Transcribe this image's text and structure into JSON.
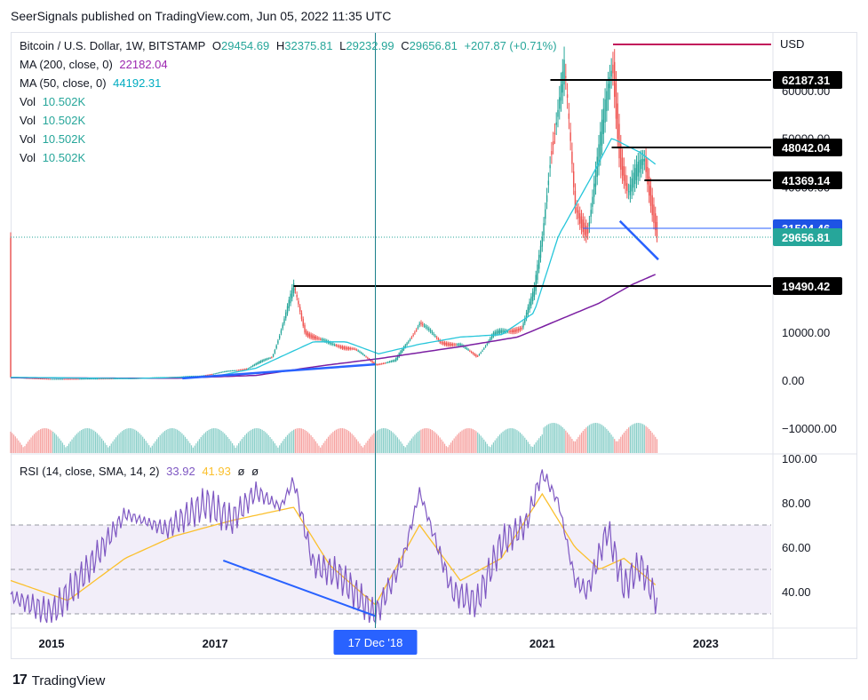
{
  "header": {
    "caption": "SeerSignals published on TradingView.com, Jun 05, 2022 11:35 UTC"
  },
  "legend": {
    "symbol": "Bitcoin / U.S. Dollar, 1W, BITSTAMP",
    "open_label": "O",
    "open": "29454.69",
    "high_label": "H",
    "high": "32375.81",
    "low_label": "L",
    "low": "29232.99",
    "close_label": "C",
    "close": "29656.81",
    "change": "+207.87 (+0.71%)",
    "ma200_label": "MA (200, close, 0)",
    "ma200_value": "22182.04",
    "ma50_label": "MA (50, close, 0)",
    "ma50_value": "44192.31",
    "vol_rows": [
      {
        "label": "Vol",
        "value": "10.502K"
      },
      {
        "label": "Vol",
        "value": "10.502K"
      },
      {
        "label": "Vol",
        "value": "10.502K"
      },
      {
        "label": "Vol",
        "value": "10.502K"
      }
    ],
    "rsi_label": "RSI (14, close, SMA, 14, 2)",
    "rsi_value": "33.92",
    "rsi_sma_value": "41.93",
    "rsi_extra1": "ø",
    "rsi_extra2": "ø"
  },
  "footer": {
    "brand": "TradingView",
    "logo": "17"
  },
  "colors": {
    "up": "#26a69a",
    "down": "#ef5350",
    "ma200": "#7b1fa2",
    "ma50": "#26c6da",
    "trend": "#2962ff",
    "rsi": "#7e57c2",
    "rsi_sma": "#fbc02d",
    "crosshair": "#1a7f8a",
    "level_black": "#000000",
    "level_blue": "#2962ff",
    "last_price": "#26a69a",
    "usd_line": "#c2185b"
  },
  "chart_data": [
    {
      "type": "candlestick",
      "title": "Bitcoin / U.S. Dollar, 1W, BITSTAMP",
      "currency": "USD",
      "x_tick_labels": [
        "2015",
        "2017",
        "2021",
        "2023"
      ],
      "crosshair_label": "17 Dec '18",
      "ylim": [
        -12000,
        69000
      ],
      "y_tick_labels": [
        {
          "value": 60000,
          "label": "60000.00"
        },
        {
          "value": 50000,
          "label": "50000.00"
        },
        {
          "value": 40000,
          "label": "40000.00"
        },
        {
          "value": 10000,
          "label": "10000.00"
        },
        {
          "value": 0,
          "label": "0.00"
        },
        {
          "value": -10000,
          "label": "−10000.00"
        }
      ],
      "horizontal_levels": [
        {
          "value": 62187.31,
          "label": "62187.31",
          "style": "black"
        },
        {
          "value": 48042.04,
          "label": "48042.04",
          "style": "black"
        },
        {
          "value": 41369.14,
          "label": "41369.14",
          "style": "black"
        },
        {
          "value": 31504.46,
          "label": "31504.46",
          "style": "blue"
        },
        {
          "value": 29656.81,
          "label": "29656.81",
          "style": "last"
        },
        {
          "value": 19490.42,
          "label": "19490.42",
          "style": "black"
        }
      ],
      "ohlc_last": {
        "open": 29454.69,
        "high": 32375.81,
        "low": 29232.99,
        "close": 29656.81
      },
      "ma200_last": 22182.04,
      "ma50_last": 44192.31,
      "price_path": [
        {
          "year": 2014.5,
          "price": 600
        },
        {
          "year": 2015.0,
          "price": 250
        },
        {
          "year": 2016.0,
          "price": 400
        },
        {
          "year": 2016.8,
          "price": 900
        },
        {
          "year": 2017.4,
          "price": 2500
        },
        {
          "year": 2017.7,
          "price": 5000
        },
        {
          "year": 2017.96,
          "price": 19000
        },
        {
          "year": 2018.1,
          "price": 10000
        },
        {
          "year": 2018.4,
          "price": 7500
        },
        {
          "year": 2018.7,
          "price": 6500
        },
        {
          "year": 2018.96,
          "price": 3300
        },
        {
          "year": 2019.2,
          "price": 4000
        },
        {
          "year": 2019.5,
          "price": 12000
        },
        {
          "year": 2019.75,
          "price": 8000
        },
        {
          "year": 2020.0,
          "price": 7200
        },
        {
          "year": 2020.2,
          "price": 5000
        },
        {
          "year": 2020.4,
          "price": 9500
        },
        {
          "year": 2020.75,
          "price": 11000
        },
        {
          "year": 2020.9,
          "price": 18000
        },
        {
          "year": 2021.0,
          "price": 30000
        },
        {
          "year": 2021.1,
          "price": 48000
        },
        {
          "year": 2021.27,
          "price": 63000
        },
        {
          "year": 2021.4,
          "price": 36000
        },
        {
          "year": 2021.55,
          "price": 31000
        },
        {
          "year": 2021.7,
          "price": 47000
        },
        {
          "year": 2021.86,
          "price": 67000
        },
        {
          "year": 2021.95,
          "price": 47000
        },
        {
          "year": 2022.05,
          "price": 38000
        },
        {
          "year": 2022.25,
          "price": 46000
        },
        {
          "year": 2022.35,
          "price": 36000
        },
        {
          "year": 2022.42,
          "price": 29500
        }
      ],
      "ma50_path": [
        {
          "year": 2014.5,
          "price": 600
        },
        {
          "year": 2016.0,
          "price": 350
        },
        {
          "year": 2017.0,
          "price": 800
        },
        {
          "year": 2017.5,
          "price": 2500
        },
        {
          "year": 2018.2,
          "price": 8000
        },
        {
          "year": 2018.6,
          "price": 8000
        },
        {
          "year": 2019.0,
          "price": 5500
        },
        {
          "year": 2019.5,
          "price": 7500
        },
        {
          "year": 2020.0,
          "price": 9000
        },
        {
          "year": 2020.5,
          "price": 9500
        },
        {
          "year": 2020.9,
          "price": 14000
        },
        {
          "year": 2021.2,
          "price": 30000
        },
        {
          "year": 2021.6,
          "price": 42000
        },
        {
          "year": 2021.85,
          "price": 50000
        },
        {
          "year": 2022.2,
          "price": 47000
        },
        {
          "year": 2022.42,
          "price": 44192
        }
      ],
      "ma200_path": [
        {
          "year": 2014.5,
          "price": 500
        },
        {
          "year": 2016.5,
          "price": 400
        },
        {
          "year": 2017.5,
          "price": 1000
        },
        {
          "year": 2018.3,
          "price": 3000
        },
        {
          "year": 2019.0,
          "price": 4500
        },
        {
          "year": 2020.0,
          "price": 7000
        },
        {
          "year": 2020.7,
          "price": 9000
        },
        {
          "year": 2021.2,
          "price": 12500
        },
        {
          "year": 2021.7,
          "price": 16000
        },
        {
          "year": 2022.1,
          "price": 19800
        },
        {
          "year": 2022.42,
          "price": 22182
        }
      ],
      "trendlines": [
        {
          "from": {
            "year": 2016.6,
            "price": 400
          },
          "to": {
            "year": 2018.96,
            "price": 3300
          }
        },
        {
          "from": {
            "year": 2021.95,
            "price": 33000
          },
          "to": {
            "year": 2022.42,
            "price": 25000
          }
        }
      ]
    },
    {
      "type": "line",
      "title": "RSI (14, close, SMA, 14, 2)",
      "ylim": [
        24,
        102
      ],
      "y_tick_labels": [
        {
          "value": 100,
          "label": "100.00"
        },
        {
          "value": 80,
          "label": "80.00"
        },
        {
          "value": 60,
          "label": "60.00"
        },
        {
          "value": 40,
          "label": "40.00"
        }
      ],
      "band": [
        30,
        70
      ],
      "midline": 50,
      "rsi_last": 33.92,
      "rsi_sma_last": 41.93,
      "rsi_path": [
        {
          "year": 2014.5,
          "rsi": 38
        },
        {
          "year": 2015.0,
          "rsi": 30
        },
        {
          "year": 2015.4,
          "rsi": 48
        },
        {
          "year": 2015.9,
          "rsi": 75
        },
        {
          "year": 2016.4,
          "rsi": 68
        },
        {
          "year": 2016.9,
          "rsi": 80
        },
        {
          "year": 2017.2,
          "rsi": 72
        },
        {
          "year": 2017.5,
          "rsi": 85
        },
        {
          "year": 2017.8,
          "rsi": 78
        },
        {
          "year": 2017.96,
          "rsi": 90
        },
        {
          "year": 2018.2,
          "rsi": 52
        },
        {
          "year": 2018.5,
          "rsi": 48
        },
        {
          "year": 2018.96,
          "rsi": 29
        },
        {
          "year": 2019.3,
          "rsi": 55
        },
        {
          "year": 2019.5,
          "rsi": 85
        },
        {
          "year": 2019.9,
          "rsi": 40
        },
        {
          "year": 2020.2,
          "rsi": 35
        },
        {
          "year": 2020.5,
          "rsi": 62
        },
        {
          "year": 2020.8,
          "rsi": 70
        },
        {
          "year": 2021.0,
          "rsi": 94
        },
        {
          "year": 2021.2,
          "rsi": 80
        },
        {
          "year": 2021.4,
          "rsi": 45
        },
        {
          "year": 2021.55,
          "rsi": 40
        },
        {
          "year": 2021.8,
          "rsi": 68
        },
        {
          "year": 2022.0,
          "rsi": 42
        },
        {
          "year": 2022.2,
          "rsi": 52
        },
        {
          "year": 2022.42,
          "rsi": 33.92
        }
      ],
      "rsi_sma_path": [
        {
          "year": 2014.5,
          "rsi": 45
        },
        {
          "year": 2015.2,
          "rsi": 36
        },
        {
          "year": 2015.9,
          "rsi": 55
        },
        {
          "year": 2016.5,
          "rsi": 65
        },
        {
          "year": 2017.2,
          "rsi": 72
        },
        {
          "year": 2017.96,
          "rsi": 78
        },
        {
          "year": 2018.4,
          "rsi": 52
        },
        {
          "year": 2018.96,
          "rsi": 34
        },
        {
          "year": 2019.5,
          "rsi": 70
        },
        {
          "year": 2020.0,
          "rsi": 45
        },
        {
          "year": 2020.5,
          "rsi": 55
        },
        {
          "year": 2021.0,
          "rsi": 84
        },
        {
          "year": 2021.4,
          "rsi": 60
        },
        {
          "year": 2021.7,
          "rsi": 50
        },
        {
          "year": 2022.0,
          "rsi": 55
        },
        {
          "year": 2022.42,
          "rsi": 41.93
        }
      ],
      "divergence_line": {
        "from": {
          "year": 2017.1,
          "rsi": 54
        },
        "to": {
          "year": 2018.96,
          "rsi": 29
        }
      }
    }
  ]
}
